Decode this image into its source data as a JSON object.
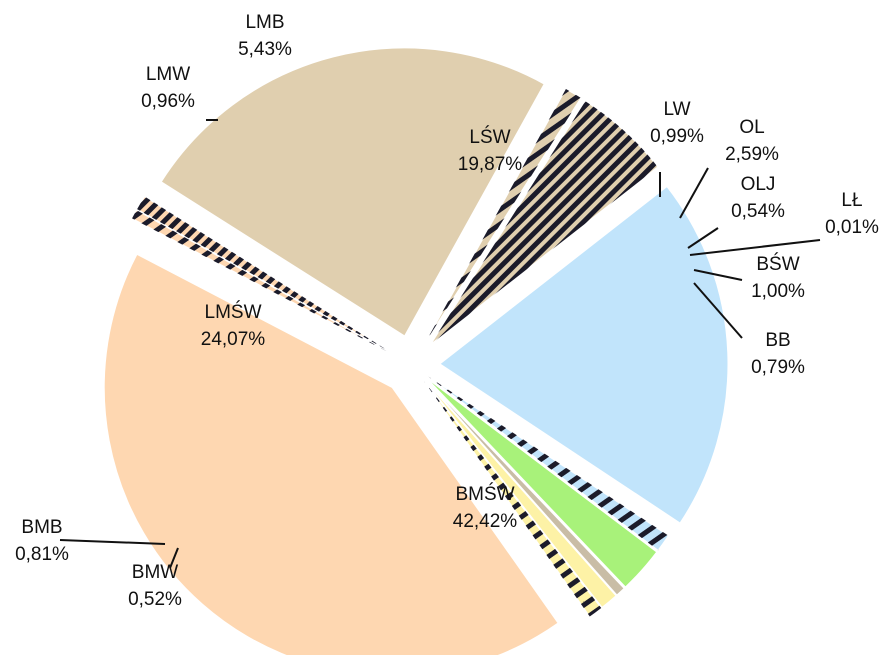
{
  "chart_data": {
    "type": "pie",
    "title": "",
    "slices": [
      {
        "name": "LŚW",
        "percent": 19.87,
        "label": "LŚW",
        "value_label": "19,87%",
        "color": "#c1e4fb",
        "pattern": "none"
      },
      {
        "name": "LW",
        "percent": 0.99,
        "label": "LW",
        "value_label": "0,99%",
        "color": "#c1e4fb",
        "pattern": "stripes-dark"
      },
      {
        "name": "OL",
        "percent": 2.59,
        "label": "OL",
        "value_label": "2,59%",
        "color": "#a8f27a",
        "pattern": "none"
      },
      {
        "name": "OLJ",
        "percent": 0.54,
        "label": "OLJ",
        "value_label": "0,54%",
        "color": "#c9bda6",
        "pattern": "none"
      },
      {
        "name": "LŁ",
        "percent": 0.01,
        "label": "LŁ",
        "value_label": "0,01%",
        "color": "#8f8f8f",
        "pattern": "none"
      },
      {
        "name": "BŚW",
        "percent": 1.0,
        "label": "BŚW",
        "value_label": "1,00%",
        "color": "#fdf2a6",
        "pattern": "none"
      },
      {
        "name": "BB",
        "percent": 0.79,
        "label": "BB",
        "value_label": "0,79%",
        "color": "#fdf2a6",
        "pattern": "stripes-dark"
      },
      {
        "name": "BMŚW",
        "percent": 42.42,
        "label": "BMŚW",
        "value_label": "42,42%",
        "color": "#fed7b1",
        "pattern": "none"
      },
      {
        "name": "BMW",
        "percent": 0.52,
        "label": "BMW",
        "value_label": "0,52%",
        "color": "#fed7b1",
        "pattern": "stripes-dark"
      },
      {
        "name": "BMB",
        "percent": 0.81,
        "label": "BMB",
        "value_label": "0,81%",
        "color": "#fed7b1",
        "pattern": "stripes-dense"
      },
      {
        "name": "LMŚW",
        "percent": 24.07,
        "label": "LMŚW",
        "value_label": "24,07%",
        "color": "#e0cfaf",
        "pattern": "none"
      },
      {
        "name": "LMW",
        "percent": 0.96,
        "label": "LMW",
        "value_label": "0,96%",
        "color": "#e0cfaf",
        "pattern": "stripes-dark"
      },
      {
        "name": "LMB",
        "percent": 5.43,
        "label": "LMB",
        "value_label": "5,43%",
        "color": "#e0cfaf",
        "pattern": "stripes-dense"
      }
    ],
    "legend": "none",
    "data_labels": "name-and-percent",
    "exploded": true
  }
}
